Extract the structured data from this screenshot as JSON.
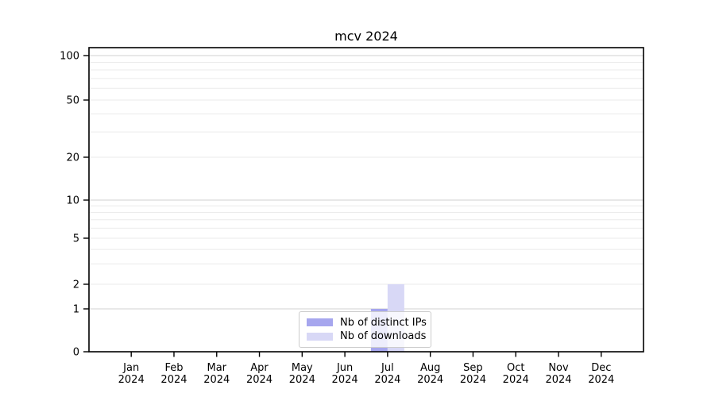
{
  "figure": {
    "title": "mcv 2024"
  },
  "chart_data": {
    "type": "bar",
    "title": "mcv 2024",
    "categories": [
      {
        "month": "Jan",
        "year": "2024"
      },
      {
        "month": "Feb",
        "year": "2024"
      },
      {
        "month": "Mar",
        "year": "2024"
      },
      {
        "month": "Apr",
        "year": "2024"
      },
      {
        "month": "May",
        "year": "2024"
      },
      {
        "month": "Jun",
        "year": "2024"
      },
      {
        "month": "Jul",
        "year": "2024"
      },
      {
        "month": "Aug",
        "year": "2024"
      },
      {
        "month": "Sep",
        "year": "2024"
      },
      {
        "month": "Oct",
        "year": "2024"
      },
      {
        "month": "Nov",
        "year": "2024"
      },
      {
        "month": "Dec",
        "year": "2024"
      }
    ],
    "series": [
      {
        "name": "Nb of distinct IPs",
        "color": "#a6a6ee",
        "values": [
          0,
          0,
          0,
          0,
          0,
          0,
          1,
          0,
          0,
          0,
          0,
          0
        ]
      },
      {
        "name": "Nb of downloads",
        "color": "#d8d8f6",
        "values": [
          0,
          0,
          0,
          0,
          0,
          0,
          2,
          0,
          0,
          0,
          0,
          0
        ]
      }
    ],
    "yscale": "symlog",
    "ylim": [
      0,
      113
    ],
    "ytick_values": [
      0,
      1,
      2,
      5,
      10,
      20,
      50,
      100
    ],
    "ytick_labels": [
      "0",
      "1",
      "2",
      "5",
      "10",
      "20",
      "50",
      "100"
    ],
    "major_grid_values": [
      1,
      10,
      100
    ],
    "minor_grid_values": [
      2,
      3,
      4,
      5,
      6,
      7,
      8,
      9,
      20,
      30,
      40,
      50,
      60,
      70,
      80,
      90
    ],
    "grid": "horizontal major+minor",
    "legend_position": "lower center",
    "xlabel": "",
    "ylabel": ""
  },
  "colors": {
    "background": "#ffffff",
    "spine": "#000000",
    "tick_text": "#000000",
    "major_grid": "#d0d0d0",
    "minor_grid": "#ebebeb",
    "bar_distinct_ips": "#a6a6ee",
    "bar_downloads": "#d8d8f6"
  }
}
